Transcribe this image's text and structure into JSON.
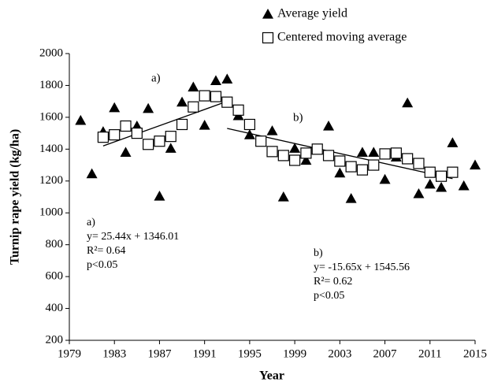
{
  "chart_data": {
    "type": "scatter",
    "x_label": "Year",
    "y_label": "Turnip rape yield (kg/ha)",
    "xlim": [
      1979,
      2015
    ],
    "xticks": [
      1979,
      1983,
      1987,
      1991,
      1995,
      1999,
      2003,
      2007,
      2011,
      2015
    ],
    "ylim": [
      200,
      2000
    ],
    "yticks": [
      200,
      400,
      600,
      800,
      1000,
      1200,
      1400,
      1600,
      1800,
      2000
    ],
    "grid": false,
    "legend": "top",
    "series": [
      {
        "name": "Average yield",
        "marker": "triangle",
        "color": "#000000",
        "x": [
          1980,
          1981,
          1982,
          1983,
          1984,
          1985,
          1986,
          1987,
          1988,
          1989,
          1990,
          1991,
          1992,
          1993,
          1994,
          1995,
          1996,
          1997,
          1998,
          1999,
          2000,
          2001,
          2002,
          2003,
          2004,
          2005,
          2006,
          2007,
          2008,
          2009,
          2010,
          2011,
          2012,
          2013,
          2014,
          2015
        ],
        "values": [
          1580,
          1245,
          1510,
          1660,
          1380,
          1545,
          1655,
          1105,
          1405,
          1695,
          1790,
          1550,
          1830,
          1840,
          1610,
          1490,
          1450,
          1515,
          1100,
          1405,
          1330,
          1395,
          1545,
          1250,
          1090,
          1380,
          1380,
          1210,
          1350,
          1690,
          1120,
          1180,
          1160,
          1440,
          1170,
          1300
        ]
      },
      {
        "name": "Centered moving average",
        "marker": "square",
        "color": "#000000",
        "x": [
          1982,
          1983,
          1984,
          1985,
          1986,
          1987,
          1988,
          1989,
          1990,
          1991,
          1992,
          1993,
          1994,
          1995,
          1996,
          1997,
          1998,
          1999,
          2000,
          2001,
          2002,
          2003,
          2004,
          2005,
          2006,
          2007,
          2008,
          2009,
          2010,
          2011,
          2012,
          2013
        ],
        "values": [
          1475,
          1490,
          1545,
          1500,
          1430,
          1450,
          1480,
          1555,
          1665,
          1735,
          1730,
          1695,
          1645,
          1555,
          1450,
          1385,
          1360,
          1330,
          1375,
          1400,
          1360,
          1325,
          1290,
          1270,
          1300,
          1370,
          1375,
          1340,
          1310,
          1255,
          1230,
          1255
        ]
      }
    ],
    "trend_lines": [
      {
        "x": [
          1982,
          1993
        ],
        "values": [
          1420,
          1700
        ]
      },
      {
        "x": [
          1993,
          2013
        ],
        "values": [
          1530,
          1215
        ]
      }
    ],
    "line_labels": [
      "a)",
      "b)"
    ],
    "equations": [
      [
        "a)",
        "y= 25.44x + 1346.01",
        "R²= 0.64",
        "p<0.05"
      ],
      [
        "b)",
        "y= -15.65x + 1545.56",
        "R²= 0.62",
        "p<0.05"
      ]
    ]
  }
}
